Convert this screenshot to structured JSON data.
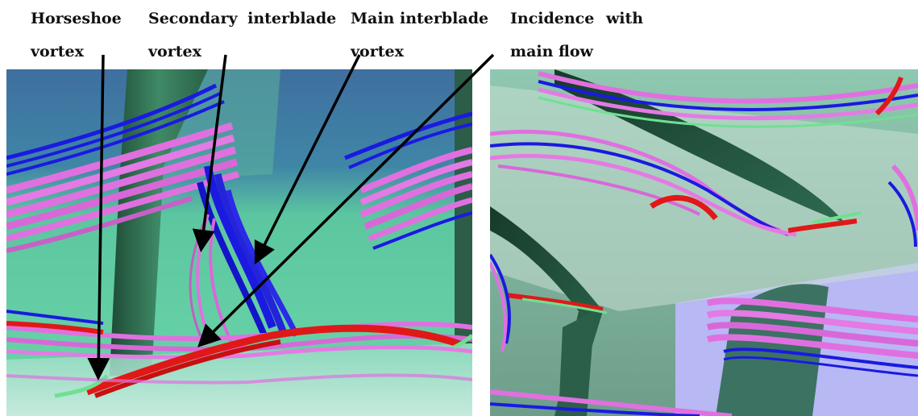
{
  "labels": {
    "horseshoe_line1": "Horseshoe",
    "horseshoe_line2": "vortex",
    "secondary_line1": "Secondary interblade",
    "secondary_line2": "vortex",
    "main_line1": "Main interblade",
    "main_line2": "vortex",
    "incidence_line1": "Incidence with",
    "incidence_line2": "main flow"
  },
  "colors": {
    "streamline_blue": "#1a1ae0",
    "streamline_magenta": "#e070e0",
    "streamline_red": "#e01818",
    "streamline_green": "#70e090",
    "background_teal": "#5fcf9f",
    "background_blue": "#3f7fa8",
    "blade_dark": "#1f4a36",
    "hub_lavender": "#b8b8f5"
  }
}
